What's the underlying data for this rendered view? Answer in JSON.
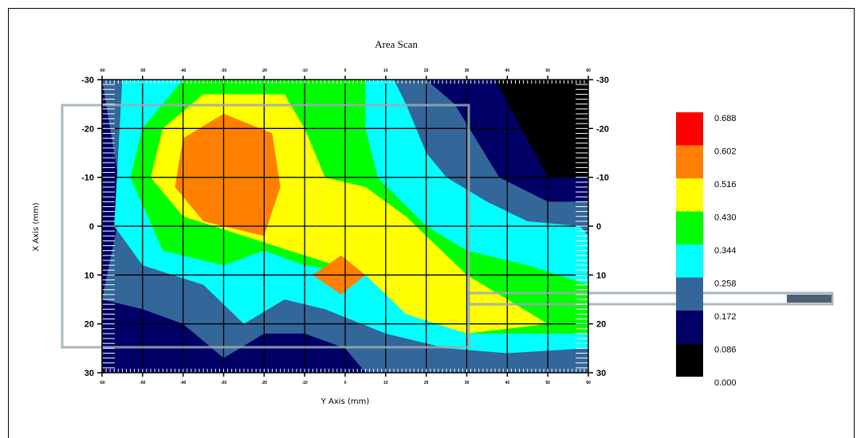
{
  "chart_data": {
    "type": "heatmap",
    "title": "Area Scan",
    "xlabel": "Y Axis (mm)",
    "ylabel": "X Axis (mm)",
    "x_range": [
      -60,
      60
    ],
    "y_range": [
      -30,
      30
    ],
    "y_ticks": [
      "-30",
      "-20",
      "-10",
      "0",
      "10",
      "20",
      "30"
    ],
    "y_tick_values": [
      -30,
      -20,
      -10,
      0,
      10,
      20,
      30
    ],
    "right_ticks": [
      "-30",
      "-20",
      "-10",
      "0",
      "10",
      "20",
      "30"
    ],
    "top_ticks": [
      "-60",
      "-50",
      "-40",
      "-30",
      "-20",
      "-10",
      "0",
      "10",
      "20",
      "30",
      "40",
      "50",
      "60"
    ],
    "bottom_ticks": [
      "-60",
      "-50",
      "-40",
      "-30",
      "-20",
      "-10",
      "0",
      "10",
      "20",
      "30",
      "40",
      "50",
      "60"
    ],
    "x_tick_values": [
      -60,
      -50,
      -40,
      -30,
      -20,
      -10,
      0,
      10,
      20,
      30,
      40,
      50,
      60
    ],
    "grid": true,
    "legend_position": "right",
    "legend": [
      {
        "label": "0.688",
        "color": "#ff0000"
      },
      {
        "label": "0.602",
        "color": "#ff8000"
      },
      {
        "label": "0.516",
        "color": "#ffff00"
      },
      {
        "label": "0.430",
        "color": "#00ff00"
      },
      {
        "label": "0.344",
        "color": "#00ffff"
      },
      {
        "label": "0.258",
        "color": "#336699"
      },
      {
        "label": "0.172",
        "color": "#000066"
      },
      {
        "label": "0.086",
        "color": "#000000"
      },
      {
        "label": "0.000",
        "color": null
      }
    ],
    "base_color": "#000066",
    "contours": [
      {
        "level": "0.258",
        "color": "#336699",
        "points": [
          [
            -60,
            -30
          ],
          [
            20,
            -30
          ],
          [
            27,
            -25
          ],
          [
            38,
            -10
          ],
          [
            50,
            -5
          ],
          [
            60,
            -5
          ],
          [
            60,
            30
          ],
          [
            -60,
            30
          ],
          [
            -60,
            15
          ],
          [
            -55,
            -5
          ]
        ]
      },
      {
        "level": "0.344",
        "color": "#00ffff",
        "points": [
          [
            -55,
            -30
          ],
          [
            12,
            -30
          ],
          [
            15,
            -25
          ],
          [
            20,
            -15
          ],
          [
            25,
            -10
          ],
          [
            35,
            -5
          ],
          [
            45,
            -1
          ],
          [
            58,
            0
          ],
          [
            60,
            2
          ],
          [
            60,
            25
          ],
          [
            40,
            26
          ],
          [
            25,
            25
          ],
          [
            10,
            22
          ],
          [
            -5,
            17
          ],
          [
            -15,
            15
          ],
          [
            -25,
            20
          ],
          [
            -35,
            12
          ],
          [
            -50,
            8
          ],
          [
            -57,
            0
          ],
          [
            -56,
            -15
          ]
        ]
      },
      {
        "level": "0.430",
        "color": "#00ff00",
        "points": [
          [
            -40,
            -30
          ],
          [
            5,
            -30
          ],
          [
            5,
            -20
          ],
          [
            8,
            -10
          ],
          [
            20,
            0
          ],
          [
            30,
            5
          ],
          [
            45,
            8
          ],
          [
            60,
            12
          ],
          [
            60,
            22
          ],
          [
            30,
            22
          ],
          [
            15,
            18
          ],
          [
            5,
            10
          ],
          [
            -10,
            8
          ],
          [
            -20,
            5
          ],
          [
            -30,
            8
          ],
          [
            -45,
            5
          ],
          [
            -53,
            -10
          ],
          [
            -50,
            -20
          ]
        ]
      },
      {
        "level": "0.516",
        "color": "#ffff00",
        "points": [
          [
            -45,
            -20
          ],
          [
            -35,
            -27
          ],
          [
            -15,
            -27
          ],
          [
            -10,
            -20
          ],
          [
            -5,
            -10
          ],
          [
            5,
            -8
          ],
          [
            15,
            -2
          ],
          [
            30,
            10
          ],
          [
            50,
            20
          ],
          [
            30,
            22
          ],
          [
            15,
            18
          ],
          [
            5,
            10
          ],
          [
            -10,
            6
          ],
          [
            -25,
            2
          ],
          [
            -40,
            -2
          ],
          [
            -48,
            -10
          ]
        ]
      },
      {
        "level": "0.602",
        "color": "#ff8000",
        "points": [
          [
            -40,
            -18
          ],
          [
            -30,
            -23
          ],
          [
            -18,
            -19
          ],
          [
            -16,
            -8
          ],
          [
            -20,
            2
          ],
          [
            -35,
            -1
          ],
          [
            -42,
            -8
          ]
        ]
      },
      {
        "level": "0.602",
        "color": "#ff8000",
        "points": [
          [
            -1,
            6
          ],
          [
            5,
            10
          ],
          [
            -1,
            14
          ],
          [
            -8,
            10
          ]
        ]
      },
      {
        "level": "0.086",
        "color": "#000000",
        "points": [
          [
            37,
            -30
          ],
          [
            60,
            -30
          ],
          [
            60,
            -10
          ],
          [
            50,
            -10
          ]
        ]
      },
      {
        "level": "0.172",
        "color": "#000066",
        "points": [
          [
            -60,
            15
          ],
          [
            -50,
            17
          ],
          [
            -40,
            20
          ],
          [
            -30,
            27
          ],
          [
            -20,
            22
          ],
          [
            -10,
            22
          ],
          [
            0,
            25
          ],
          [
            5,
            30
          ],
          [
            -60,
            30
          ]
        ]
      }
    ]
  },
  "probe": {
    "label": "",
    "color": "#9aaab4"
  }
}
